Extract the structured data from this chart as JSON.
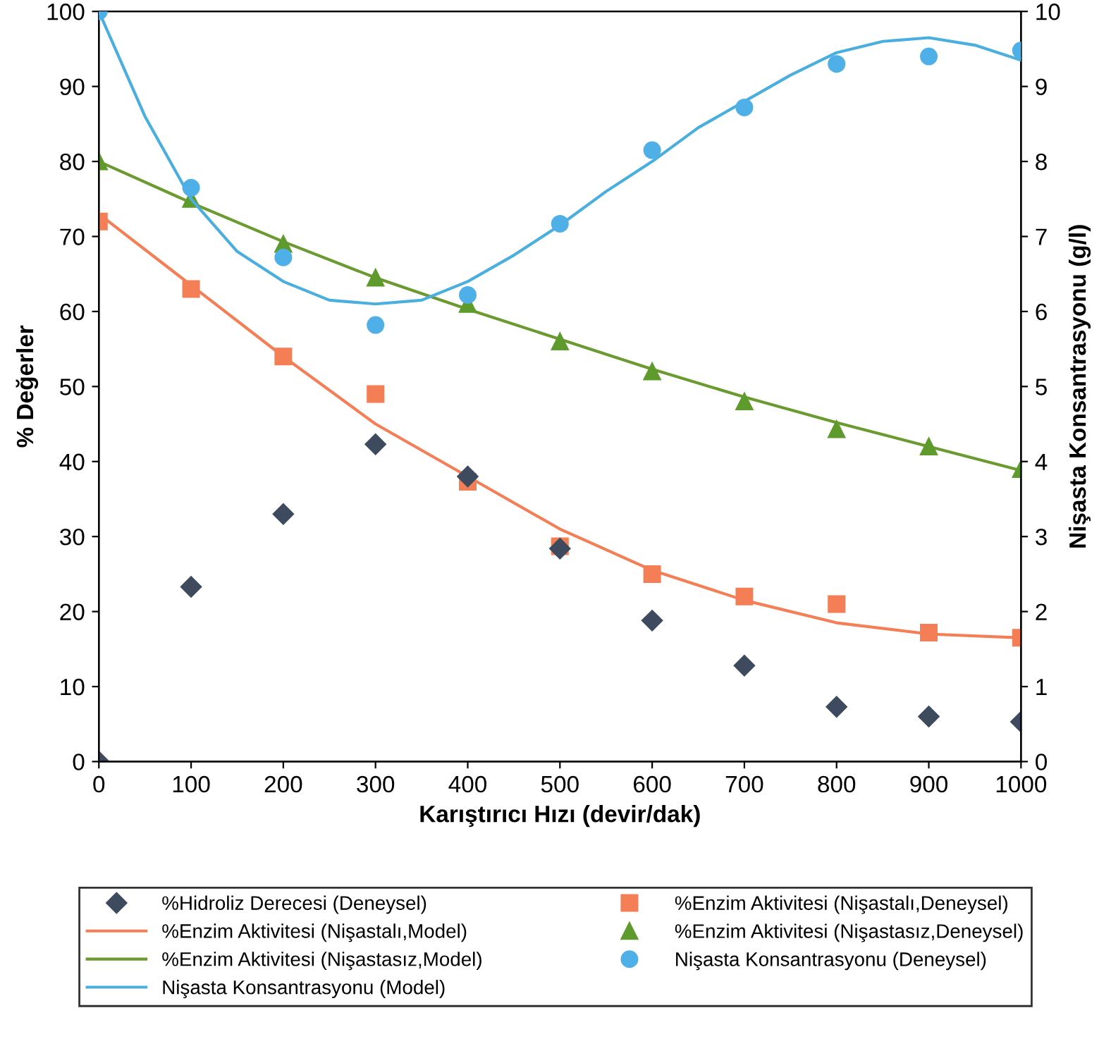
{
  "chart_data": {
    "type": "scatter",
    "xlabel": "Karıştırıcı Hızı (devir/dak)",
    "ylabel": "% Değerler",
    "y2label": "Nişasta Konsantrasyonu (g/l)",
    "xlim": [
      0,
      1000
    ],
    "xticks": [
      0,
      100,
      200,
      300,
      400,
      500,
      600,
      700,
      800,
      900,
      1000
    ],
    "ylim": [
      0,
      100
    ],
    "yticks": [
      0,
      10,
      20,
      30,
      40,
      50,
      60,
      70,
      80,
      90,
      100
    ],
    "y2lim": [
      0,
      10
    ],
    "y2ticks": [
      0,
      1,
      2,
      3,
      4,
      5,
      6,
      7,
      8,
      9,
      10
    ],
    "grid": false,
    "legend": "bottom",
    "series": [
      {
        "name": "%Hidroliz Derecesi (Deneysel)",
        "marker": "diamond",
        "color": "#3e4a5e",
        "x": [
          0,
          100,
          200,
          300,
          400,
          500,
          600,
          700,
          800,
          900,
          1000
        ],
        "values": [
          0,
          23.3,
          33,
          42.3,
          38,
          28.4,
          18.8,
          12.8,
          7.3,
          6,
          5.3
        ]
      },
      {
        "name": "%Enzim Aktivitesi (Nişastalı,Deneysel)",
        "marker": "square",
        "color": "#f47e55",
        "x": [
          0,
          100,
          200,
          300,
          400,
          500,
          600,
          700,
          800,
          900,
          1000
        ],
        "values": [
          72,
          63,
          54,
          49,
          37.3,
          28.7,
          25,
          22,
          21,
          17.2,
          16.5
        ]
      },
      {
        "name": "%Enzim Aktivitesi (Nişastalı,Model)",
        "type": "line",
        "color": "#f47e55",
        "x": [
          0,
          100,
          200,
          300,
          400,
          500,
          600,
          700,
          800,
          900,
          1000
        ],
        "values": [
          73,
          63.5,
          54,
          45,
          38,
          31,
          25.5,
          21.5,
          18.5,
          17,
          16.5
        ]
      },
      {
        "name": "%Enzim Aktivitesi (Nişastasız,Deneysel)",
        "marker": "triangle",
        "color": "#5e9a2c",
        "x": [
          0,
          100,
          200,
          300,
          400,
          500,
          600,
          700,
          800,
          900,
          1000
        ],
        "values": [
          80,
          75,
          69,
          64.5,
          61,
          56,
          52,
          48,
          44.3,
          42,
          39
        ]
      },
      {
        "name": "%Enzim Aktivitesi (Nişastasız,Model)",
        "type": "line",
        "color": "#6a9a30",
        "x": [
          0,
          100,
          200,
          300,
          400,
          500,
          600,
          700,
          800,
          900,
          1000
        ],
        "values": [
          80,
          74.5,
          69.3,
          64.5,
          60.3,
          56.3,
          52.3,
          48.6,
          45.2,
          42,
          38.8
        ]
      },
      {
        "name": "Nişasta Konsantrasyonu (Deneysel)",
        "marker": "circle",
        "color": "#4fb0e8",
        "axis": "y2",
        "x": [
          0,
          100,
          200,
          300,
          400,
          500,
          600,
          700,
          800,
          900,
          1000
        ],
        "values": [
          10,
          7.65,
          6.72,
          5.82,
          6.22,
          7.17,
          8.15,
          8.72,
          9.3,
          9.4,
          9.48
        ]
      },
      {
        "name": "Nişasta Konsantrasyonu (Model)",
        "type": "line",
        "color": "#4aaede",
        "axis": "y2",
        "x": [
          0,
          50,
          100,
          150,
          200,
          250,
          300,
          350,
          400,
          450,
          500,
          550,
          600,
          650,
          700,
          750,
          800,
          850,
          900,
          950,
          1000
        ],
        "values": [
          10,
          8.6,
          7.5,
          6.8,
          6.4,
          6.15,
          6.1,
          6.15,
          6.4,
          6.75,
          7.15,
          7.6,
          8,
          8.45,
          8.8,
          9.15,
          9.45,
          9.6,
          9.65,
          9.55,
          9.35
        ]
      }
    ]
  }
}
